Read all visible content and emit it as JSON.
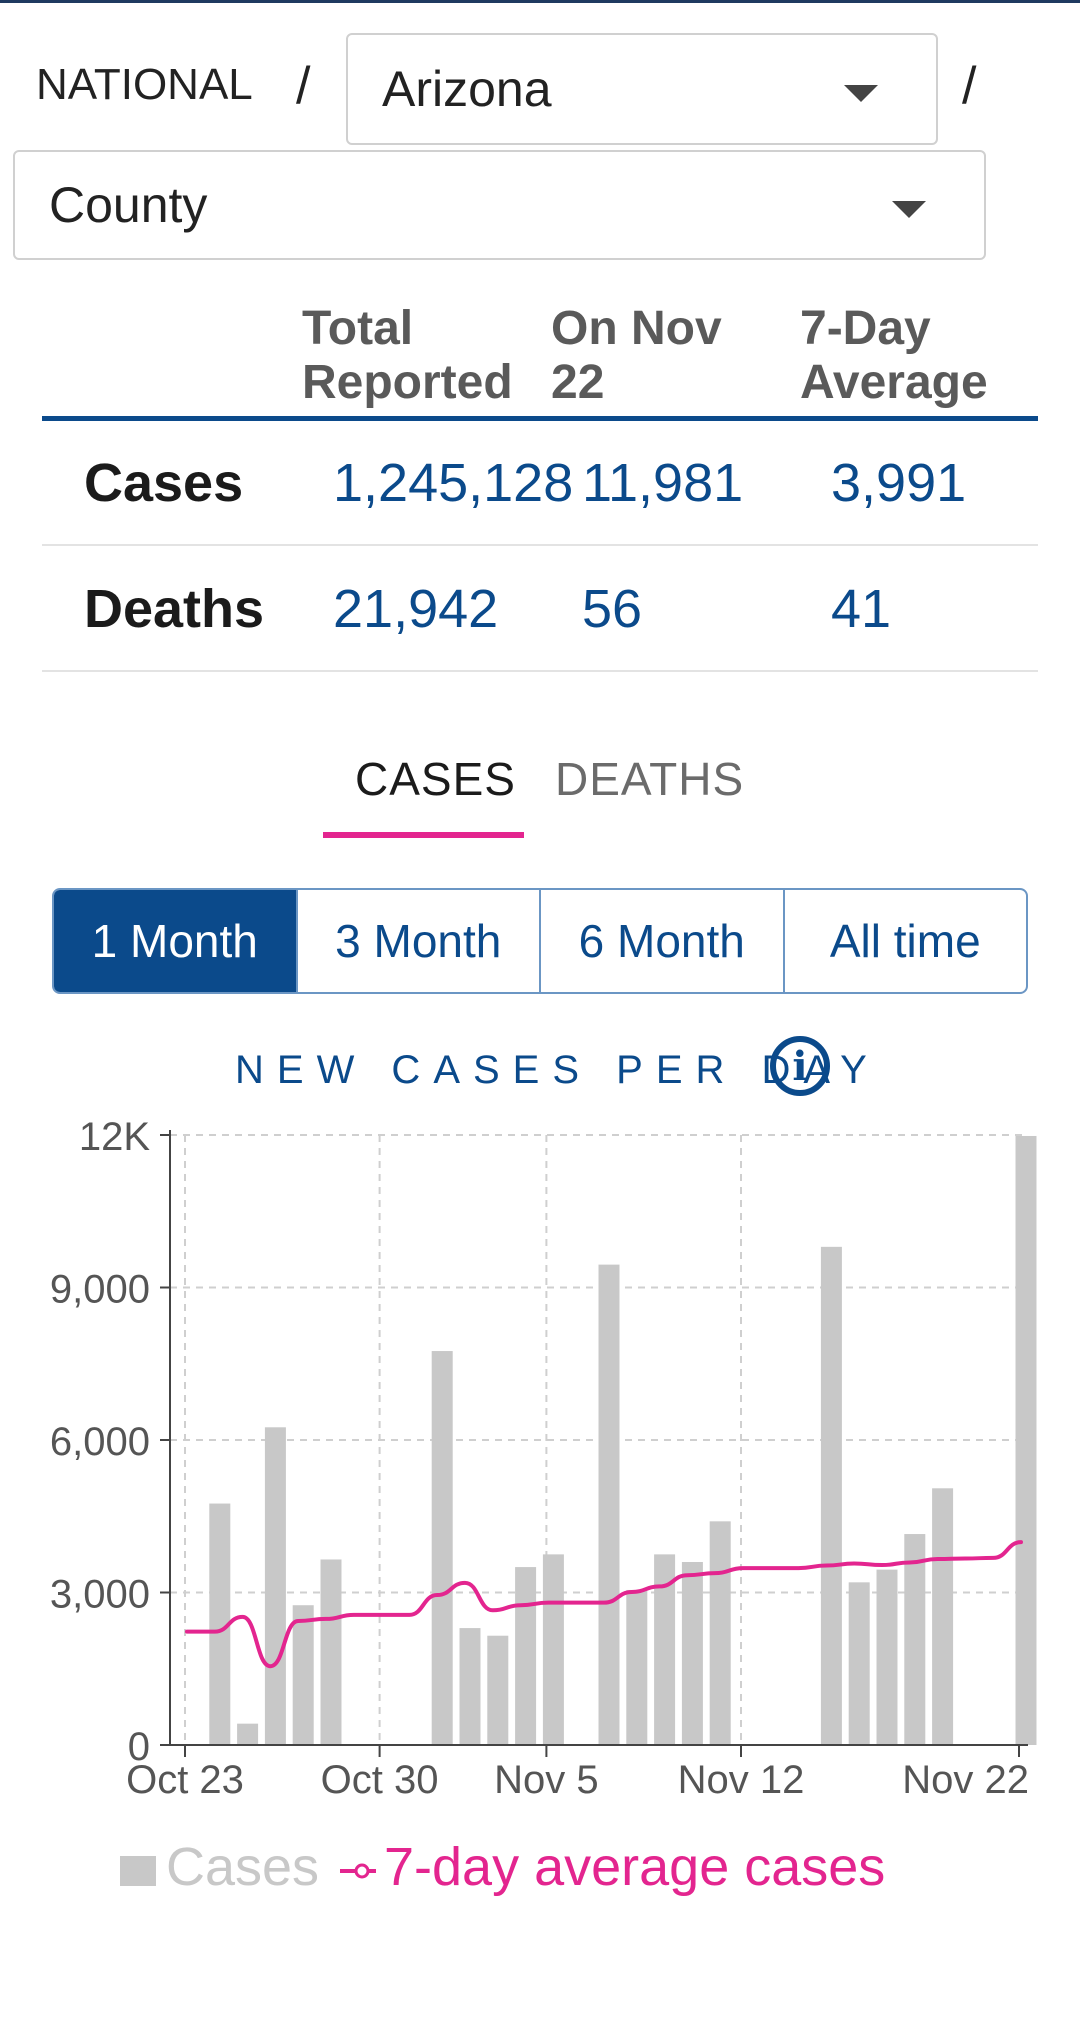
{
  "breadcrumb": {
    "national": "NATIONAL",
    "separator": "/",
    "state": "Arizona",
    "county": "County"
  },
  "summary": {
    "headers": {
      "total_line1": "Total",
      "total_line2": "Reported",
      "day_line1": "On Nov",
      "day_line2": "22",
      "avg_line1": "7-Day",
      "avg_line2": "Average"
    },
    "rows": [
      {
        "label": "Cases",
        "total": "1,245,128",
        "day": "11,981",
        "avg": "3,991"
      },
      {
        "label": "Deaths",
        "total": "21,942",
        "day": "56",
        "avg": "41"
      }
    ]
  },
  "tabs": {
    "cases": "CASES",
    "deaths": "DEATHS",
    "active": "cases"
  },
  "ranges": {
    "items": [
      "1 Month",
      "3 Month",
      "6 Month",
      "All time"
    ],
    "active": 0
  },
  "chart": {
    "title": "NEW CASES PER DAY",
    "info_glyph": "i"
  },
  "chart_data": {
    "type": "bar",
    "title": "NEW CASES PER DAY",
    "x_ticks": [
      "Oct 23",
      "Oct 30",
      "Nov 5",
      "Nov 12",
      "Nov 22"
    ],
    "y_ticks": [
      "0",
      "3,000",
      "6,000",
      "9,000",
      "12K"
    ],
    "ylim": [
      0,
      12000
    ],
    "grid": true,
    "legend_position": "bottom",
    "categories": [
      "Oct 23",
      "Oct 24",
      "Oct 25",
      "Oct 26",
      "Oct 27",
      "Oct 28",
      "Oct 29",
      "Oct 30",
      "Oct 31",
      "Nov 1",
      "Nov 2",
      "Nov 3",
      "Nov 4",
      "Nov 5",
      "Nov 6",
      "Nov 7",
      "Nov 8",
      "Nov 9",
      "Nov 10",
      "Nov 11",
      "Nov 12",
      "Nov 13",
      "Nov 14",
      "Nov 15",
      "Nov 16",
      "Nov 17",
      "Nov 18",
      "Nov 19",
      "Nov 20",
      "Nov 21",
      "Nov 22"
    ],
    "series": [
      {
        "name": "Cases",
        "type": "bar",
        "color": "#c8c8c8",
        "values": [
          0,
          4750,
          420,
          6250,
          2750,
          3650,
          0,
          0,
          0,
          7750,
          2300,
          2150,
          3500,
          3750,
          0,
          9450,
          3050,
          3750,
          3600,
          4400,
          0,
          0,
          0,
          9800,
          3200,
          3450,
          4150,
          5050,
          0,
          0,
          11981
        ]
      },
      {
        "name": "7-day average cases",
        "type": "line",
        "color": "#e3258f",
        "values": [
          2230,
          2230,
          2520,
          1550,
          2440,
          2480,
          2560,
          2560,
          2560,
          2950,
          3190,
          2650,
          2750,
          2800,
          2800,
          2800,
          3010,
          3120,
          3340,
          3380,
          3480,
          3480,
          3480,
          3530,
          3570,
          3540,
          3590,
          3660,
          3670,
          3680,
          3991
        ]
      }
    ]
  },
  "colors": {
    "accent": "#0b4a8b",
    "highlight": "#e3258f",
    "bar": "#c8c8c8"
  }
}
